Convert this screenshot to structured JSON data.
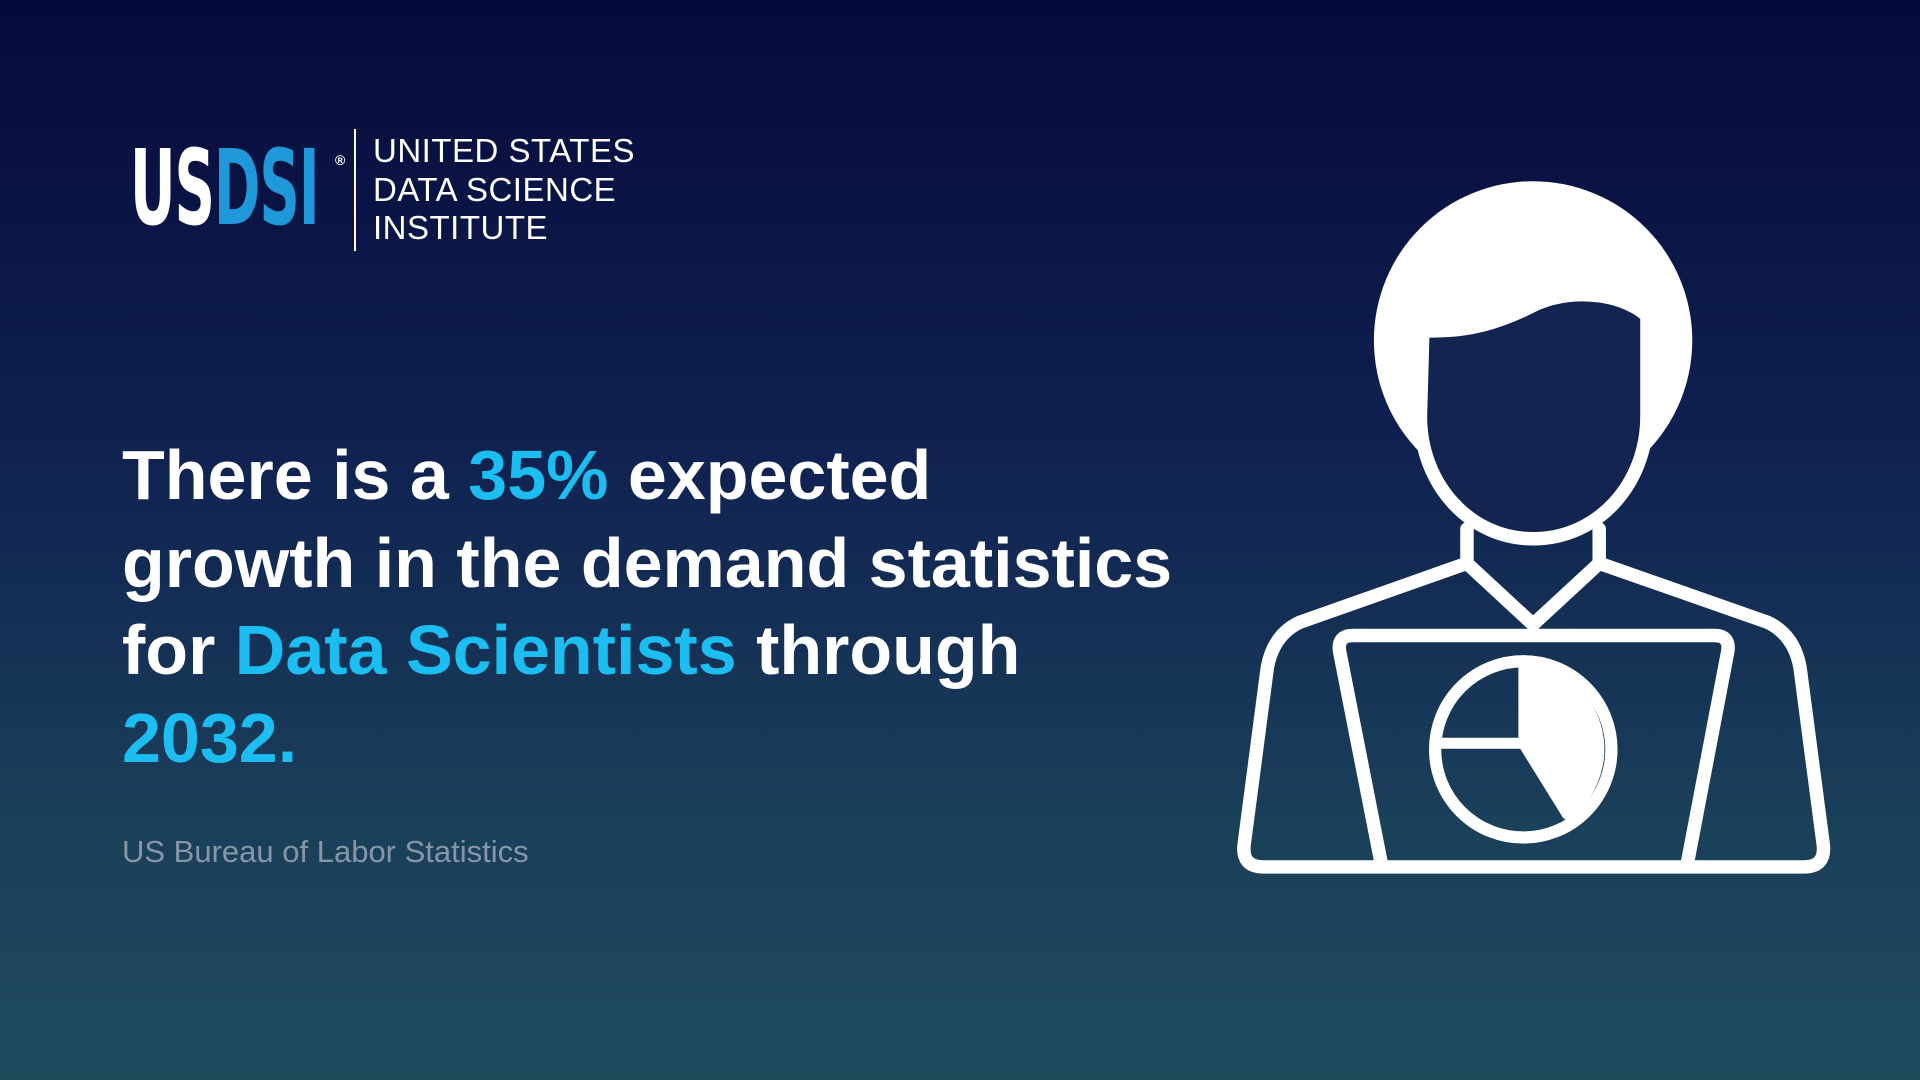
{
  "logo": {
    "mark_us": "US",
    "mark_dsi": "DSI",
    "registered": "®",
    "name_lines": [
      "UNITED STATES",
      "DATA SCIENCE",
      "INSTITUTE"
    ]
  },
  "headline": {
    "lines": [
      [
        {
          "text": "There is a ",
          "highlight": false
        },
        {
          "text": "35%",
          "highlight": true
        },
        {
          "text": " expected",
          "highlight": false
        }
      ],
      [
        {
          "text": "growth in the demand statistics",
          "highlight": false
        }
      ],
      [
        {
          "text": "for ",
          "highlight": false
        },
        {
          "text": "Data Scientists",
          "highlight": true
        },
        {
          "text": " through",
          "highlight": false
        }
      ],
      [
        {
          "text": "2032.",
          "highlight": true
        }
      ]
    ]
  },
  "source": "US Bureau of Labor Statistics"
}
